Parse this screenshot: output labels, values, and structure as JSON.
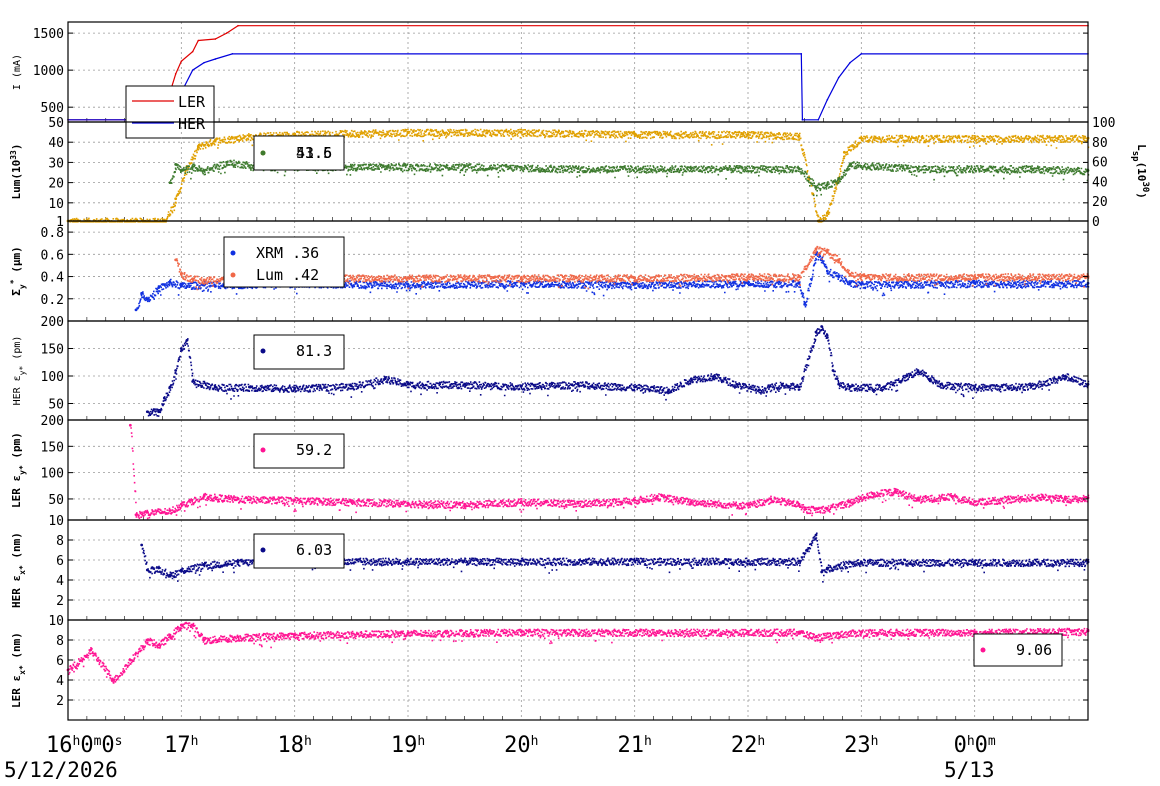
{
  "colors": {
    "ler": "#e00000",
    "her": "#0000dd",
    "lum_lsp": "#e0a000",
    "lum": "#3d7a2e",
    "xrm": "#1030e0",
    "lum_sigma": "#f06848",
    "her_emit": "#0a0a88",
    "ler_emit": "#ff1493"
  },
  "x_axis": {
    "ticks": [
      {
        "hour": 16,
        "main": "16",
        "sup": "h",
        "extra": "0",
        "sup2": "m",
        "extra2": "0",
        "sup3": "s"
      },
      {
        "hour": 17,
        "main": "17",
        "sup": "h"
      },
      {
        "hour": 18,
        "main": "18",
        "sup": "h"
      },
      {
        "hour": 19,
        "main": "19",
        "sup": "h"
      },
      {
        "hour": 20,
        "main": "20",
        "sup": "h"
      },
      {
        "hour": 21,
        "main": "21",
        "sup": "h"
      },
      {
        "hour": 22,
        "main": "22",
        "sup": "h"
      },
      {
        "hour": 23,
        "main": "23",
        "sup": "h"
      },
      {
        "hour": 24,
        "main": "0",
        "sup": "h",
        "extra": "0",
        "sup2": "m"
      }
    ],
    "date_start": "5/12/2026",
    "date_next": "5/13",
    "range_hours": [
      16,
      25
    ]
  },
  "chart_data": [
    {
      "id": "current",
      "type": "line",
      "ylabel": "I (mA)",
      "ylim": [
        300,
        1650
      ],
      "yticks": [
        500,
        1000,
        1500
      ],
      "grid": true,
      "legend": {
        "placement": "bottom-left",
        "entries": [
          "LER",
          "HER"
        ]
      },
      "series": [
        {
          "name": "LER",
          "color_key": "ler",
          "x": [
            16.0,
            16.85,
            16.9,
            16.95,
            17.0,
            17.1,
            17.15,
            17.3,
            17.4,
            17.5,
            25.0
          ],
          "y": [
            330,
            330,
            700,
            950,
            1120,
            1250,
            1400,
            1420,
            1500,
            1600,
            1600
          ]
        },
        {
          "name": "HER",
          "color_key": "her",
          "x": [
            16.0,
            16.95,
            17.0,
            17.1,
            17.2,
            17.3,
            17.45,
            22.47,
            22.48,
            22.62,
            22.7,
            22.8,
            22.9,
            23.0,
            25.0
          ],
          "y": [
            330,
            330,
            700,
            1000,
            1100,
            1150,
            1220,
            1220,
            330,
            330,
            600,
            900,
            1100,
            1220,
            1220
          ]
        }
      ]
    },
    {
      "id": "luminosity",
      "type": "scatter",
      "ylabel": "Lum(10",
      "ylabel_sup": "33",
      "ylabel_end": ")",
      "ylim": [
        1,
        50
      ],
      "yticks": [
        1,
        10,
        20,
        30,
        40,
        50
      ],
      "y2label": "L",
      "y2label_sub": "sp",
      "y2label_mid": "(10",
      "y2label_sup": "30",
      "y2label_end": ")",
      "y2lim": [
        0,
        100
      ],
      "y2ticks": [
        0,
        20,
        40,
        60,
        80,
        100
      ],
      "grid": true,
      "legend": {
        "placement": "top-left",
        "entries": [
          "51.6",
          "43.5"
        ]
      },
      "series": [
        {
          "name": "51.6",
          "color_key": "lum_lsp",
          "x": [
            16.0,
            16.85,
            16.95,
            17.05,
            17.15,
            17.3,
            17.6,
            18.0,
            19.0,
            20.0,
            21.0,
            22.0,
            22.45,
            22.62,
            22.7,
            22.78,
            22.85,
            23.0,
            24.0,
            25.0
          ],
          "y": [
            1,
            1,
            12,
            28,
            38,
            41,
            43,
            44,
            45,
            45,
            44,
            44,
            43,
            1,
            5,
            20,
            35,
            42,
            42,
            42
          ]
        },
        {
          "name": "43.5",
          "color_key": "lum",
          "x": [
            16.9,
            16.95,
            17.0,
            17.1,
            17.2,
            17.4,
            17.8,
            18.5,
            19.5,
            20.5,
            21.5,
            22.45,
            22.6,
            22.7,
            22.8,
            22.9,
            23.5,
            24.5,
            25.0
          ],
          "y": [
            20,
            29,
            26,
            28,
            26,
            30,
            28,
            28,
            28,
            27,
            27,
            27,
            18,
            19,
            22,
            29,
            27,
            27,
            26
          ]
        }
      ]
    },
    {
      "id": "sigma",
      "type": "scatter",
      "ylabel": "Σ",
      "ylabel_sub": "y",
      "ylabel_sup": "*",
      "ylabel_end": " (μm)",
      "ylim": [
        0.0,
        0.9
      ],
      "yticks": [
        0.2,
        0.4,
        0.6,
        0.8
      ],
      "grid": true,
      "legend": {
        "placement": "top-left",
        "entries": [
          "XRM  .36",
          "Lum  .42"
        ]
      },
      "series": [
        {
          "name": "XRM  .36",
          "color_key": "xrm",
          "x": [
            16.6,
            16.65,
            16.7,
            16.8,
            16.9,
            17.0,
            17.2,
            17.5,
            18.0,
            19.0,
            20.0,
            21.0,
            22.0,
            22.45,
            22.5,
            22.6,
            22.65,
            22.7,
            22.8,
            22.9,
            23.0,
            24.0,
            25.0
          ],
          "y": [
            0.1,
            0.25,
            0.2,
            0.3,
            0.35,
            0.32,
            0.33,
            0.33,
            0.34,
            0.33,
            0.34,
            0.33,
            0.34,
            0.34,
            0.15,
            0.6,
            0.55,
            0.45,
            0.4,
            0.34,
            0.33,
            0.34,
            0.34
          ]
        },
        {
          "name": "Lum  .42",
          "color_key": "lum_sigma",
          "x": [
            16.95,
            17.0,
            17.1,
            17.2,
            17.5,
            18.0,
            19.0,
            20.0,
            21.0,
            22.0,
            22.45,
            22.6,
            22.7,
            22.8,
            22.9,
            23.0,
            24.0,
            25.0
          ],
          "y": [
            0.55,
            0.42,
            0.38,
            0.37,
            0.38,
            0.39,
            0.39,
            0.39,
            0.39,
            0.4,
            0.4,
            0.65,
            0.62,
            0.55,
            0.42,
            0.4,
            0.4,
            0.4
          ]
        }
      ]
    },
    {
      "id": "her_emit_y",
      "type": "scatter",
      "ylabel": "HER ε",
      "ylabel_sub": "y*",
      "ylabel_end": " (pm)",
      "ylim": [
        20,
        200
      ],
      "yticks": [
        50,
        100,
        150,
        200
      ],
      "grid": true,
      "legend": {
        "placement": "top-left",
        "entries": [
          "81.3"
        ]
      },
      "series": [
        {
          "name": "81.3",
          "color_key": "her_emit",
          "x": [
            16.7,
            16.8,
            16.85,
            16.9,
            16.95,
            17.0,
            17.05,
            17.1,
            17.3,
            17.6,
            18.0,
            18.5,
            18.8,
            19.0,
            19.5,
            20.0,
            20.5,
            21.0,
            21.3,
            21.5,
            21.7,
            21.9,
            22.1,
            22.3,
            22.45,
            22.6,
            22.65,
            22.7,
            22.75,
            22.8,
            22.9,
            23.2,
            23.4,
            23.5,
            23.7,
            24.0,
            24.5,
            24.8,
            25.0
          ],
          "y": [
            35,
            35,
            60,
            80,
            110,
            150,
            165,
            90,
            80,
            80,
            78,
            82,
            95,
            85,
            85,
            82,
            85,
            80,
            75,
            95,
            100,
            85,
            75,
            85,
            80,
            180,
            190,
            170,
            110,
            85,
            80,
            80,
            100,
            110,
            85,
            80,
            82,
            100,
            85
          ]
        }
      ]
    },
    {
      "id": "ler_emit_y",
      "type": "scatter",
      "ylabel": "LER ε",
      "ylabel_sub": "y*",
      "ylabel_end": " (pm)",
      "ylim": [
        10,
        200
      ],
      "yticks": [
        10,
        50,
        100,
        150,
        200
      ],
      "grid": true,
      "legend": {
        "placement": "top-left",
        "entries": [
          "59.2"
        ]
      },
      "series": [
        {
          "name": "59.2",
          "color_key": "ler_emit",
          "x": [
            16.55,
            16.6,
            16.7,
            16.9,
            17.0,
            17.2,
            17.5,
            18.0,
            18.5,
            19.0,
            19.5,
            20.0,
            20.5,
            21.0,
            21.2,
            21.5,
            21.7,
            22.0,
            22.2,
            22.45,
            22.5,
            22.7,
            22.9,
            23.1,
            23.3,
            23.5,
            23.8,
            24.0,
            24.3,
            24.6,
            24.8,
            25.0
          ],
          "y": [
            190,
            20,
            25,
            28,
            40,
            55,
            50,
            48,
            45,
            42,
            40,
            45,
            42,
            48,
            55,
            45,
            42,
            38,
            50,
            40,
            30,
            32,
            45,
            60,
            65,
            50,
            55,
            45,
            50,
            55,
            50,
            52
          ]
        }
      ]
    },
    {
      "id": "her_emit_x",
      "type": "scatter",
      "ylabel": "HER ε",
      "ylabel_sub": "x*",
      "ylabel_end": " (nm)",
      "ylim": [
        0,
        10
      ],
      "yticks": [
        2,
        4,
        6,
        8
      ],
      "grid": true,
      "legend": {
        "placement": "top-left",
        "entries": [
          "6.03"
        ]
      },
      "series": [
        {
          "name": "6.03",
          "color_key": "her_emit",
          "x": [
            16.65,
            16.7,
            16.8,
            16.9,
            17.0,
            17.2,
            17.5,
            18.0,
            19.0,
            20.0,
            21.0,
            22.0,
            22.45,
            22.6,
            22.65,
            22.7,
            22.8,
            23.0,
            24.0,
            25.0
          ],
          "y": [
            7.5,
            5.0,
            5.2,
            4.5,
            5.0,
            5.5,
            5.8,
            5.9,
            5.9,
            5.9,
            5.9,
            5.9,
            5.9,
            8.5,
            4.8,
            5.2,
            5.5,
            5.8,
            5.8,
            5.8
          ]
        }
      ]
    },
    {
      "id": "ler_emit_x",
      "type": "scatter",
      "ylabel": "LER ε",
      "ylabel_sub": "x*",
      "ylabel_end": " (nm)",
      "ylim": [
        0,
        10
      ],
      "yticks": [
        2,
        4,
        6,
        8,
        10
      ],
      "grid": true,
      "legend": {
        "placement": "bottom-right",
        "entries": [
          "9.06"
        ]
      },
      "series": [
        {
          "name": "9.06",
          "color_key": "ler_emit",
          "x": [
            16.0,
            16.2,
            16.4,
            16.55,
            16.7,
            16.8,
            16.9,
            17.0,
            17.1,
            17.2,
            17.5,
            18.0,
            19.0,
            20.0,
            21.0,
            22.0,
            22.45,
            22.6,
            22.8,
            23.0,
            24.0,
            25.0
          ],
          "y": [
            5,
            7,
            4,
            6,
            8,
            7.5,
            8.5,
            9.5,
            9.5,
            8,
            8.3,
            8.5,
            8.7,
            8.8,
            8.8,
            8.8,
            8.8,
            8.3,
            8.6,
            8.8,
            8.8,
            8.9
          ]
        }
      ]
    }
  ]
}
